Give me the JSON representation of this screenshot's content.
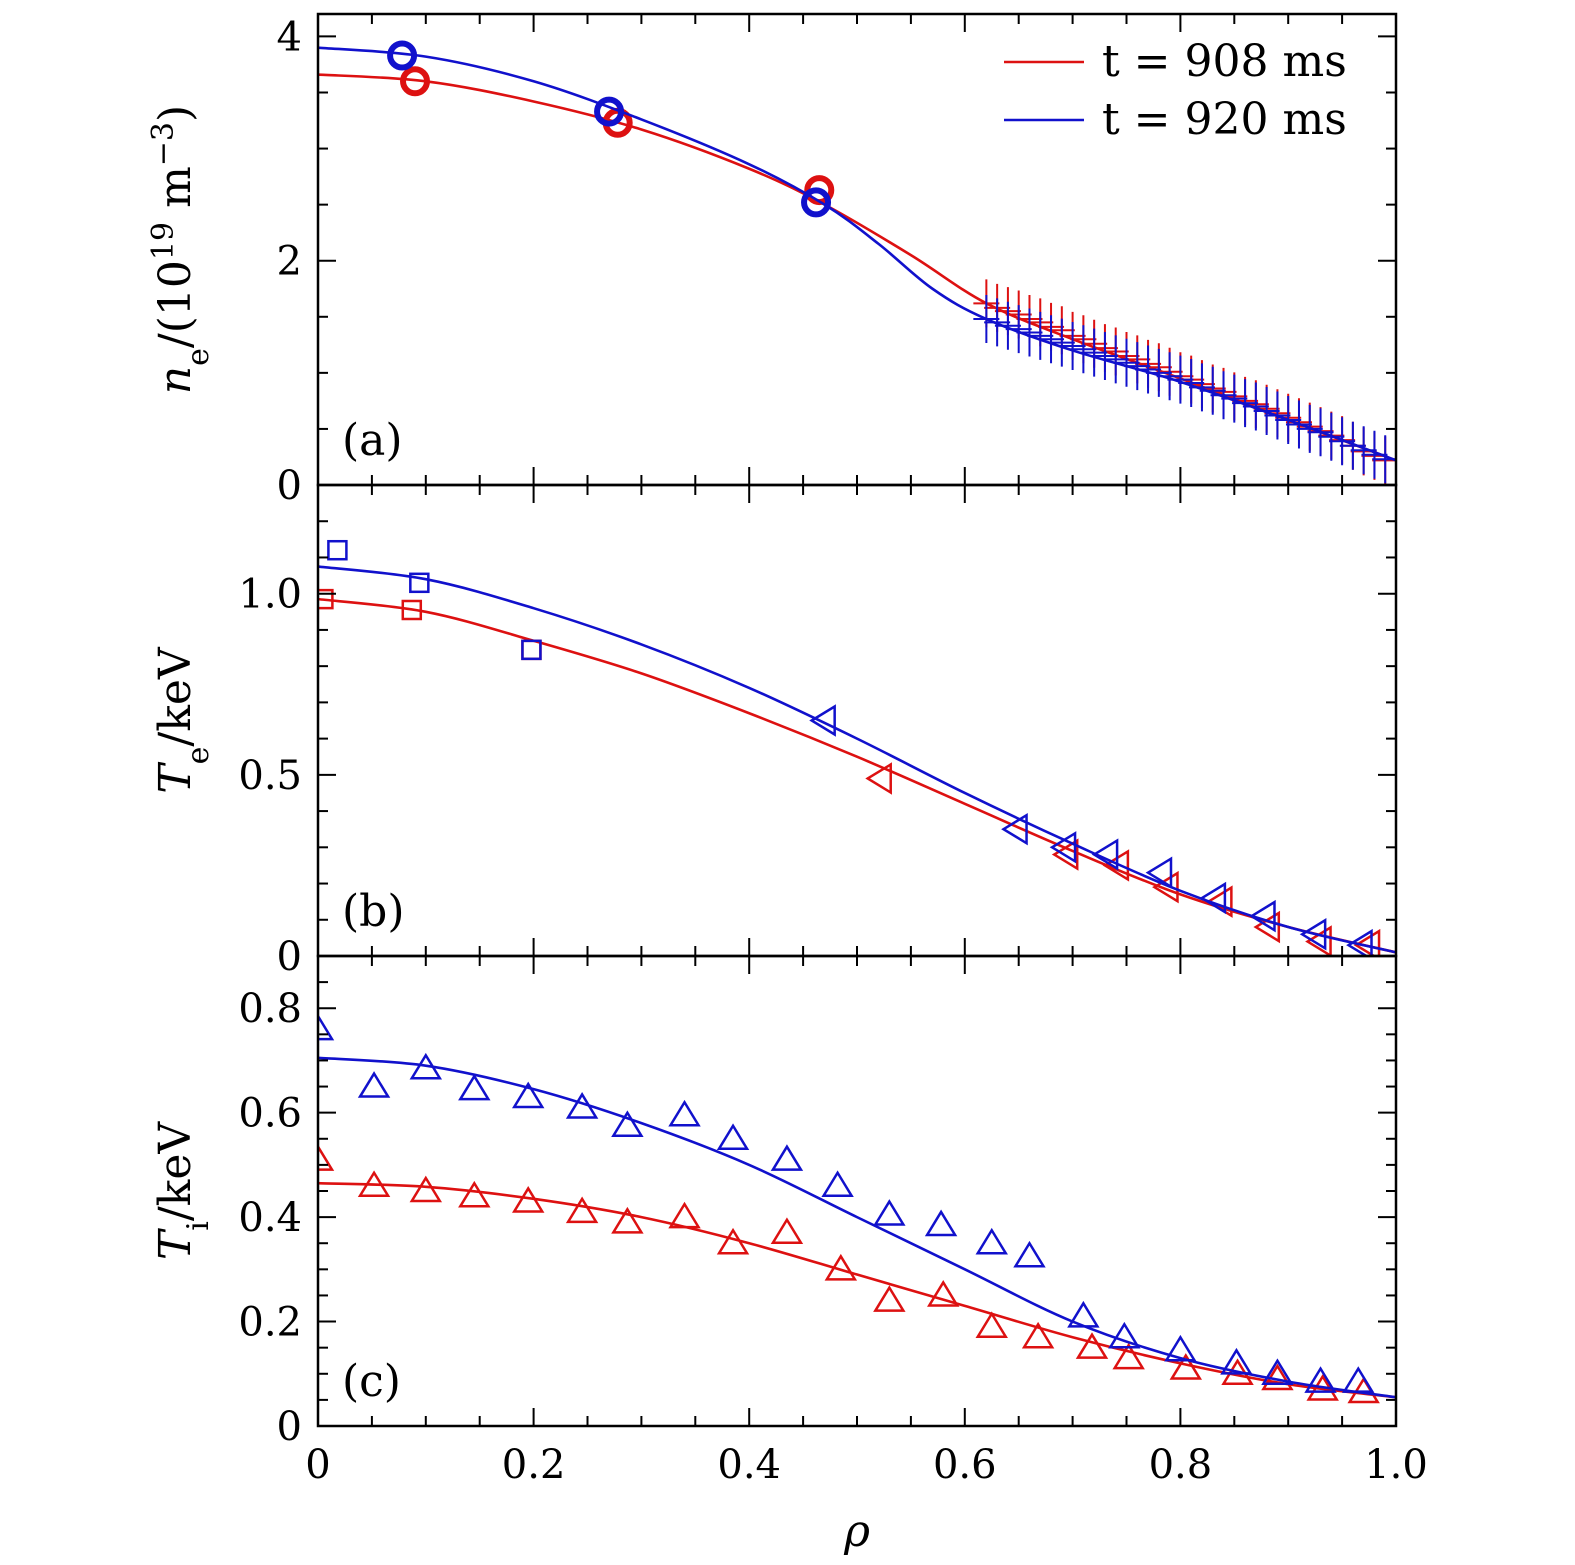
{
  "chart_data": {
    "type": "scatter",
    "shared_x": {
      "label": "ρ",
      "range": [
        0,
        1.0
      ],
      "tick_labels": [
        "0",
        "0.2",
        "0.4",
        "0.6",
        "0.8",
        "1.0"
      ],
      "tick_values": [
        0,
        0.2,
        0.4,
        0.6,
        0.8,
        1.0
      ]
    },
    "legend": {
      "placement": "top-right",
      "entries": [
        {
          "label_main": "t = 908 ms",
          "color": "#dd1111"
        },
        {
          "label_main": "t = 920 ms",
          "color": "#1111cc"
        }
      ]
    },
    "panels": [
      {
        "id": "a",
        "panel_label": "(a)",
        "ylabel": {
          "sym": "n",
          "sub": "e",
          "rest": "/(10",
          "exp": "19",
          "unit": " m",
          "unit_exp": "−3",
          "close": ")"
        },
        "ylim": [
          0,
          4.2
        ],
        "y_tick_values": [
          0,
          2,
          4
        ],
        "y_tick_labels": [
          "0",
          "2",
          "4"
        ],
        "y_minor": 0.5,
        "series": [
          {
            "color": "#dd1111",
            "fit": {
              "x": [
                0,
                0.1,
                0.2,
                0.3,
                0.4,
                0.47,
                0.55,
                0.62,
                0.7,
                0.8,
                0.9,
                1.0
              ],
              "y": [
                3.66,
                3.6,
                3.42,
                3.17,
                2.82,
                2.5,
                2.05,
                1.62,
                1.3,
                0.95,
                0.58,
                0.22
              ]
            },
            "circles": {
              "x": [
                0.09,
                0.278,
                0.465
              ],
              "y": [
                3.6,
                3.23,
                2.63
              ]
            },
            "plus": {
              "x": [
                0.62,
                0.63,
                0.64,
                0.65,
                0.66,
                0.67,
                0.68,
                0.69,
                0.7,
                0.71,
                0.72,
                0.73,
                0.74,
                0.75,
                0.76,
                0.77,
                0.78,
                0.79,
                0.8,
                0.81,
                0.82,
                0.83,
                0.84,
                0.85,
                0.86,
                0.87,
                0.88,
                0.89,
                0.9,
                0.91,
                0.92,
                0.93,
                0.94,
                0.95,
                0.96,
                0.97,
                0.98,
                0.99
              ],
              "y": [
                1.62,
                1.58,
                1.55,
                1.52,
                1.48,
                1.45,
                1.41,
                1.38,
                1.33,
                1.3,
                1.26,
                1.22,
                1.19,
                1.15,
                1.12,
                1.08,
                1.05,
                1.01,
                0.97,
                0.94,
                0.9,
                0.86,
                0.83,
                0.79,
                0.75,
                0.72,
                0.68,
                0.64,
                0.6,
                0.56,
                0.52,
                0.48,
                0.44,
                0.4,
                0.35,
                0.3,
                0.26,
                0.22
              ]
            }
          },
          {
            "color": "#1111cc",
            "fit": {
              "x": [
                0,
                0.1,
                0.2,
                0.3,
                0.4,
                0.47,
                0.52,
                0.57,
                0.62,
                0.7,
                0.8,
                0.9,
                1.0
              ],
              "y": [
                3.9,
                3.82,
                3.6,
                3.26,
                2.86,
                2.5,
                2.15,
                1.75,
                1.48,
                1.2,
                0.92,
                0.58,
                0.22
              ]
            },
            "circles": {
              "x": [
                0.078,
                0.27,
                0.462
              ],
              "y": [
                3.83,
                3.33,
                2.52
              ]
            },
            "plus": {
              "x": [
                0.62,
                0.63,
                0.64,
                0.65,
                0.66,
                0.67,
                0.68,
                0.69,
                0.7,
                0.71,
                0.72,
                0.73,
                0.74,
                0.75,
                0.76,
                0.77,
                0.78,
                0.79,
                0.8,
                0.81,
                0.82,
                0.83,
                0.84,
                0.85,
                0.86,
                0.87,
                0.88,
                0.89,
                0.9,
                0.91,
                0.92,
                0.93,
                0.94,
                0.95,
                0.96,
                0.97,
                0.98,
                0.99
              ],
              "y": [
                1.48,
                1.45,
                1.42,
                1.39,
                1.36,
                1.33,
                1.3,
                1.27,
                1.24,
                1.21,
                1.18,
                1.15,
                1.12,
                1.09,
                1.06,
                1.03,
                1.0,
                0.97,
                0.94,
                0.91,
                0.87,
                0.84,
                0.8,
                0.77,
                0.73,
                0.7,
                0.66,
                0.62,
                0.58,
                0.54,
                0.5,
                0.47,
                0.43,
                0.39,
                0.35,
                0.31,
                0.27,
                0.23
              ]
            }
          }
        ]
      },
      {
        "id": "b",
        "panel_label": "(b)",
        "ylabel": {
          "sym": "T",
          "sub": "e",
          "rest": "/keV"
        },
        "ylim": [
          0,
          1.3
        ],
        "y_tick_values": [
          0,
          0.5,
          1.0
        ],
        "y_tick_labels": [
          "0",
          "0.5",
          "1.0"
        ],
        "y_minor": 0.1,
        "series": [
          {
            "color": "#dd1111",
            "fit": {
              "x": [
                0,
                0.1,
                0.2,
                0.3,
                0.4,
                0.5,
                0.6,
                0.7,
                0.8,
                0.9,
                1.0
              ],
              "y": [
                0.985,
                0.95,
                0.87,
                0.78,
                0.67,
                0.55,
                0.42,
                0.29,
                0.17,
                0.08,
                0.01
              ]
            },
            "squares": {
              "x": [
                0.005,
                0.087,
                0.198
              ],
              "y": [
                0.985,
                0.955,
                0.845
              ]
            },
            "triangles_left": {
              "x": [
                0.522,
                0.695,
                0.742,
                0.788,
                0.838,
                0.882,
                0.93,
                0.975
              ],
              "y": [
                0.49,
                0.28,
                0.25,
                0.19,
                0.15,
                0.08,
                0.04,
                0.03
              ]
            }
          },
          {
            "color": "#1111cc",
            "fit": {
              "x": [
                0,
                0.1,
                0.2,
                0.3,
                0.4,
                0.5,
                0.6,
                0.7,
                0.8,
                0.9,
                1.0
              ],
              "y": [
                1.075,
                1.04,
                0.96,
                0.86,
                0.74,
                0.6,
                0.45,
                0.31,
                0.18,
                0.08,
                0.01
              ]
            },
            "squares": {
              "x": [
                0.018,
                0.094,
                0.198
              ],
              "y": [
                1.12,
                1.03,
                0.845
              ]
            },
            "triangles_left": {
              "x": [
                0.47,
                0.648,
                0.693,
                0.732,
                0.782,
                0.832,
                0.878,
                0.925,
                0.968
              ],
              "y": [
                0.65,
                0.35,
                0.3,
                0.28,
                0.23,
                0.16,
                0.11,
                0.06,
                0.03
              ]
            }
          }
        ]
      },
      {
        "id": "c",
        "panel_label": "(c)",
        "ylabel": {
          "sym": "T",
          "sub": "i",
          "rest": "/keV"
        },
        "ylim": [
          0,
          0.9
        ],
        "y_tick_values": [
          0,
          0.2,
          0.4,
          0.6,
          0.8
        ],
        "y_tick_labels": [
          "0",
          "0.2",
          "0.4",
          "0.6",
          "0.8"
        ],
        "y_minor": 0.05,
        "series": [
          {
            "color": "#dd1111",
            "fit": {
              "x": [
                0,
                0.1,
                0.2,
                0.3,
                0.4,
                0.5,
                0.6,
                0.7,
                0.8,
                0.9,
                1.0
              ],
              "y": [
                0.465,
                0.458,
                0.435,
                0.4,
                0.35,
                0.29,
                0.23,
                0.17,
                0.12,
                0.08,
                0.055
              ]
            },
            "triangles_up": {
              "x": [
                0.0,
                0.052,
                0.1,
                0.145,
                0.195,
                0.245,
                0.287,
                0.34,
                0.385,
                0.435,
                0.485,
                0.53,
                0.58,
                0.625,
                0.668,
                0.718,
                0.752,
                0.805,
                0.853,
                0.89,
                0.932,
                0.97
              ],
              "y": [
                0.51,
                0.46,
                0.45,
                0.44,
                0.43,
                0.41,
                0.39,
                0.4,
                0.35,
                0.37,
                0.3,
                0.24,
                0.25,
                0.19,
                0.17,
                0.15,
                0.13,
                0.11,
                0.1,
                0.09,
                0.07,
                0.065
              ]
            }
          },
          {
            "color": "#1111cc",
            "fit": {
              "x": [
                0,
                0.1,
                0.2,
                0.3,
                0.4,
                0.5,
                0.6,
                0.7,
                0.8,
                0.9,
                1.0
              ],
              "y": [
                0.705,
                0.69,
                0.645,
                0.58,
                0.5,
                0.4,
                0.3,
                0.2,
                0.13,
                0.085,
                0.055
              ]
            },
            "triangles_up": {
              "x": [
                0.0,
                0.052,
                0.1,
                0.145,
                0.195,
                0.245,
                0.287,
                0.34,
                0.385,
                0.435,
                0.482,
                0.53,
                0.578,
                0.625,
                0.66,
                0.71,
                0.748,
                0.8,
                0.852,
                0.89,
                0.93,
                0.965
              ],
              "y": [
                0.76,
                0.65,
                0.685,
                0.645,
                0.63,
                0.61,
                0.575,
                0.595,
                0.55,
                0.51,
                0.46,
                0.405,
                0.385,
                0.35,
                0.325,
                0.21,
                0.17,
                0.145,
                0.12,
                0.1,
                0.085,
                0.085
              ]
            }
          }
        ]
      }
    ]
  }
}
